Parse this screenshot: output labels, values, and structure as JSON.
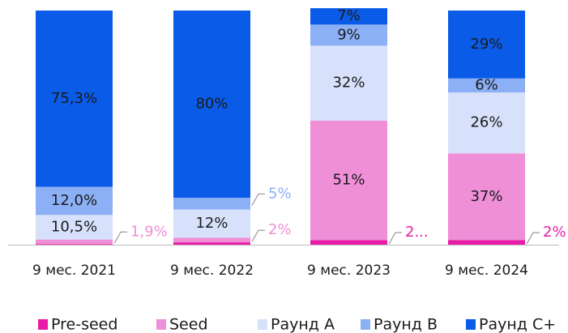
{
  "chart_data": {
    "type": "stacked_bar",
    "categories": [
      "9 мес. 2021",
      "9 мес. 2022",
      "9 мес. 2023",
      "9 мес. 2024"
    ],
    "ylim": [
      0,
      100
    ],
    "series": [
      {
        "name": "Pre-seed",
        "color": "#e81ca6",
        "values": [
          0.3,
          1,
          2,
          2
        ],
        "value_labels": [
          null,
          null,
          "2...",
          "2%"
        ]
      },
      {
        "name": "Seed",
        "color": "#ef8fd8",
        "values": [
          1.9,
          2,
          51,
          37
        ],
        "value_labels": [
          "1,9%",
          "2%",
          "51%",
          "37%"
        ]
      },
      {
        "name": "Раунд A",
        "color": "#d7e1fb",
        "values": [
          10.5,
          12,
          32,
          26
        ],
        "value_labels": [
          "10,5%",
          "12%",
          "32%",
          "26%"
        ]
      },
      {
        "name": "Раунд B",
        "color": "#8cb0f6",
        "values": [
          12.0,
          5,
          9,
          6
        ],
        "value_labels": [
          "12,0%",
          "5%",
          "9%",
          "6%"
        ]
      },
      {
        "name": "Раунд C+",
        "color": "#0b5be9",
        "values": [
          75.3,
          80,
          7,
          29
        ],
        "value_labels": [
          "75,3%",
          "80%",
          "7%",
          "29%"
        ]
      }
    ]
  }
}
